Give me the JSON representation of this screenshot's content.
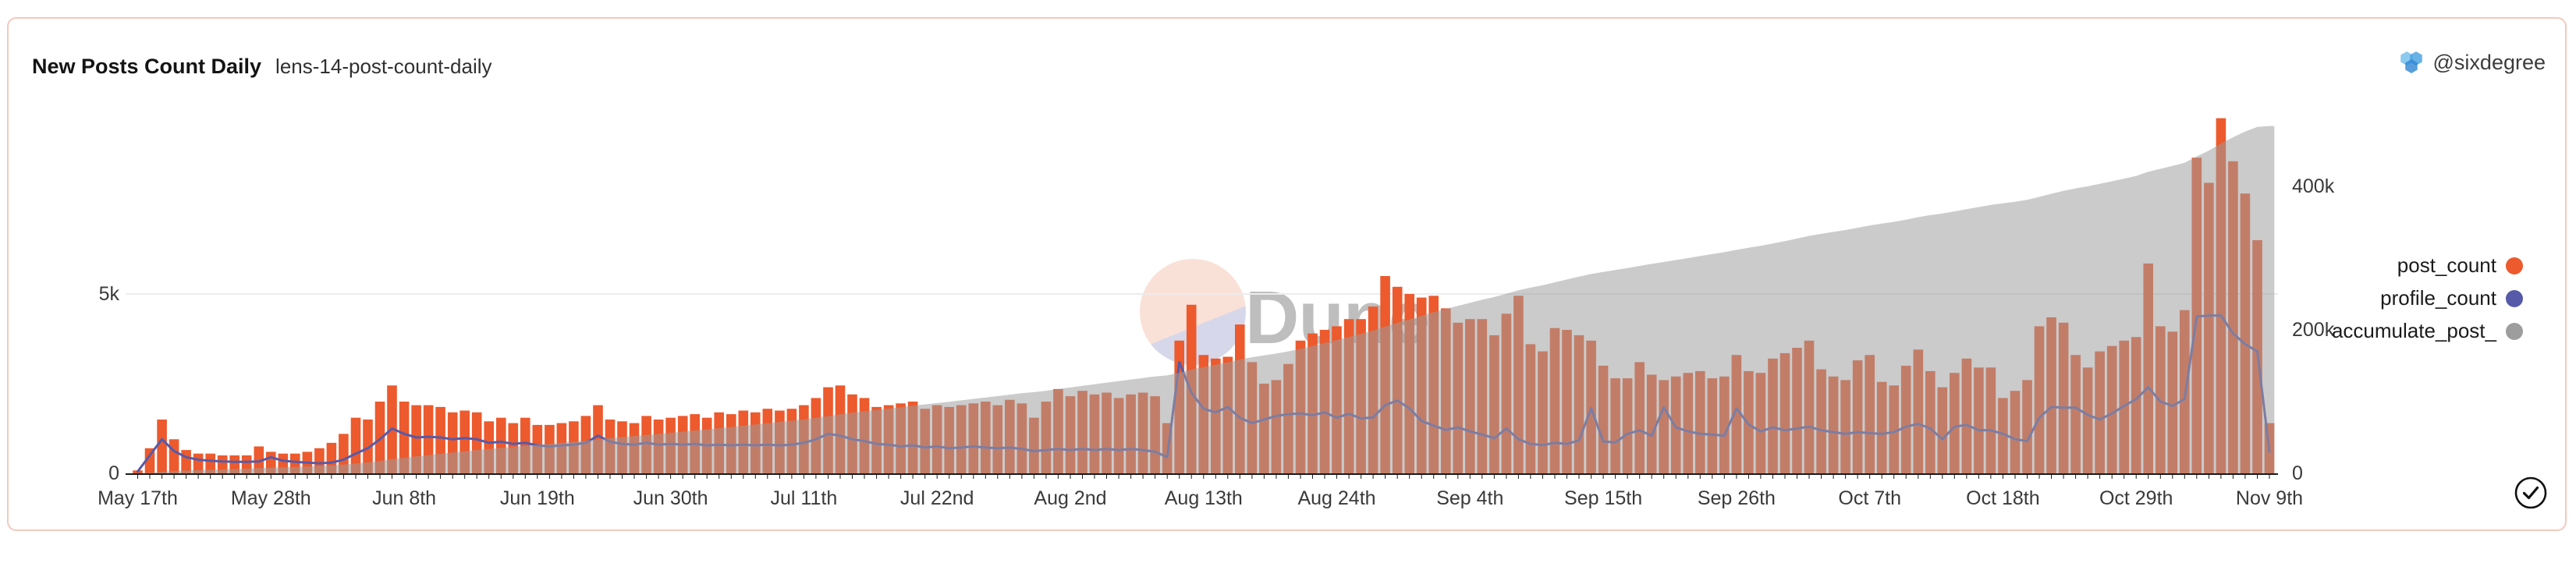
{
  "card": {
    "title": "New Posts Count Daily",
    "subtitle": "lens-14-post-count-daily",
    "owner": "@sixdegree",
    "owner_icon": "hexagon-cluster-icon",
    "status_icon": "check-circle-icon"
  },
  "watermark": {
    "text": "Dune",
    "icon": "dune-sun-circle-icon"
  },
  "legend": {
    "position": "right",
    "items": [
      {
        "label": "post_count",
        "color": "#EC5A2D",
        "marker": "circle"
      },
      {
        "label": "profile_count",
        "color": "#575AA8",
        "marker": "circle"
      },
      {
        "label": "accumulate_post_",
        "color": "#9D9D9D",
        "marker": "circle"
      }
    ]
  },
  "chart_data": {
    "type": "combo",
    "title": "New Posts Count Daily",
    "x_unit": "day",
    "n_days": 177,
    "x_start_label": "May 17th",
    "x_end_label": "Nov 9th",
    "x_tick_labels": [
      "May 17th",
      "May 28th",
      "Jun 8th",
      "Jun 19th",
      "Jun 30th",
      "Jul 11th",
      "Jul 22nd",
      "Aug 2nd",
      "Aug 13th",
      "Aug 24th",
      "Sep 4th",
      "Sep 15th",
      "Sep 26th",
      "Oct 7th",
      "Oct 18th",
      "Oct 29th",
      "Nov 9th"
    ],
    "x_tick_day_indices": [
      0,
      11,
      22,
      33,
      44,
      55,
      66,
      77,
      88,
      99,
      110,
      121,
      132,
      143,
      154,
      165,
      176
    ],
    "y_left": {
      "tick_labels": [
        "0",
        "5k"
      ],
      "tick_values": [
        0,
        5000
      ],
      "max": 10000,
      "gridline_at": 5000
    },
    "y_right": {
      "tick_labels": [
        "0",
        "200k",
        "400k"
      ],
      "tick_values": [
        0,
        200000,
        400000
      ],
      "max": 500000
    },
    "grid": "single-horizontal-line",
    "legend_position": "right",
    "series": [
      {
        "name": "post_count",
        "type": "bar",
        "y_axis": "left",
        "color": "#EC5A2D",
        "values": [
          80,
          700,
          1500,
          950,
          650,
          550,
          550,
          500,
          500,
          500,
          750,
          600,
          550,
          550,
          600,
          700,
          850,
          1100,
          1550,
          1500,
          2000,
          2450,
          2000,
          1900,
          1900,
          1850,
          1700,
          1750,
          1700,
          1450,
          1550,
          1400,
          1550,
          1350,
          1350,
          1400,
          1450,
          1600,
          1900,
          1500,
          1450,
          1400,
          1600,
          1500,
          1550,
          1600,
          1650,
          1550,
          1700,
          1650,
          1750,
          1700,
          1800,
          1750,
          1800,
          1900,
          2100,
          2400,
          2450,
          2200,
          2100,
          1850,
          1900,
          1950,
          2000,
          1800,
          1900,
          1850,
          1900,
          1950,
          2000,
          1900,
          2050,
          1950,
          1550,
          2000,
          2350,
          2150,
          2300,
          2200,
          2250,
          2100,
          2200,
          2250,
          2150,
          1400,
          3700,
          4700,
          3300,
          3200,
          3250,
          4150,
          3100,
          2500,
          2600,
          3050,
          3700,
          3900,
          4000,
          4100,
          4300,
          4300,
          4650,
          5500,
          5200,
          5000,
          4900,
          4950,
          4600,
          4200,
          4300,
          4300,
          3850,
          4450,
          4950,
          3600,
          3400,
          4050,
          4000,
          3850,
          3700,
          3000,
          2650,
          2650,
          3100,
          2750,
          2600,
          2700,
          2800,
          2850,
          2650,
          2700,
          3300,
          2850,
          2800,
          3200,
          3350,
          3500,
          3700,
          2900,
          2700,
          2600,
          3150,
          3300,
          2550,
          2450,
          3000,
          3450,
          2850,
          2400,
          2800,
          3200,
          2950,
          2950,
          2100,
          2300,
          2600,
          4100,
          4350,
          4200,
          3300,
          2950,
          3400,
          3550,
          3700,
          3800,
          5850,
          4100,
          3950,
          4550,
          8800,
          8100,
          9900,
          8700,
          7800,
          6500,
          1400
        ]
      },
      {
        "name": "profile_count",
        "type": "line",
        "y_axis": "left",
        "color": "#575AA8",
        "values": [
          50,
          500,
          950,
          620,
          450,
          380,
          350,
          330,
          320,
          320,
          330,
          450,
          350,
          320,
          300,
          280,
          300,
          380,
          550,
          700,
          950,
          1250,
          1100,
          1000,
          1020,
          1000,
          950,
          980,
          950,
          850,
          880,
          820,
          850,
          780,
          750,
          780,
          800,
          850,
          1050,
          880,
          820,
          800,
          850,
          800,
          820,
          800,
          820,
          780,
          800,
          780,
          800,
          780,
          800,
          780,
          800,
          850,
          950,
          1100,
          1050,
          950,
          900,
          820,
          800,
          750,
          780,
          720,
          750,
          700,
          720,
          750,
          720,
          700,
          720,
          680,
          620,
          650,
          680,
          650,
          680,
          650,
          680,
          650,
          680,
          650,
          600,
          450,
          3100,
          2250,
          1800,
          1700,
          1850,
          1550,
          1400,
          1500,
          1600,
          1650,
          1670,
          1620,
          1700,
          1550,
          1660,
          1530,
          1560,
          1900,
          2030,
          1810,
          1460,
          1330,
          1210,
          1280,
          1170,
          1080,
          980,
          1250,
          950,
          820,
          790,
          850,
          820,
          920,
          1810,
          890,
          860,
          1100,
          1200,
          1050,
          1840,
          1280,
          1170,
          1100,
          1080,
          1050,
          1810,
          1360,
          1170,
          1280,
          1200,
          1250,
          1300,
          1200,
          1150,
          1100,
          1150,
          1120,
          1100,
          1150,
          1300,
          1380,
          1250,
          950,
          1300,
          1350,
          1200,
          1200,
          1100,
          950,
          900,
          1550,
          1850,
          1830,
          1830,
          1630,
          1500,
          1670,
          1880,
          2070,
          2400,
          2000,
          1880,
          2070,
          4370,
          4400,
          4400,
          3900,
          3600,
          3400,
          600
        ]
      },
      {
        "name": "accumulate_post_",
        "type": "area",
        "y_axis": "right",
        "color": "#CCCCCC",
        "values": [
          80,
          780,
          2280,
          3230,
          3880,
          4430,
          4980,
          5480,
          5980,
          6480,
          7230,
          7830,
          8380,
          8930,
          9530,
          10230,
          11080,
          12180,
          13730,
          15230,
          17230,
          19680,
          21680,
          23580,
          25480,
          27330,
          29030,
          30780,
          32480,
          33930,
          35480,
          36880,
          38430,
          39780,
          41130,
          42530,
          43980,
          45580,
          47480,
          48980,
          50430,
          51830,
          53430,
          54930,
          56480,
          58080,
          59730,
          61280,
          62980,
          64630,
          66380,
          68080,
          69880,
          71630,
          73430,
          75330,
          77430,
          79830,
          82280,
          84480,
          86580,
          88430,
          90330,
          92280,
          94280,
          96080,
          97980,
          99830,
          101730,
          103680,
          105680,
          107580,
          109630,
          111580,
          113130,
          115130,
          117480,
          119630,
          121930,
          124130,
          126380,
          128480,
          130680,
          132930,
          135080,
          136480,
          140180,
          144880,
          148180,
          151380,
          154630,
          158780,
          161880,
          164380,
          166980,
          170030,
          173730,
          177630,
          181630,
          185730,
          190030,
          194330,
          198980,
          204480,
          209680,
          214680,
          219580,
          224530,
          229130,
          233330,
          237630,
          241930,
          245780,
          250230,
          255180,
          258780,
          262180,
          266230,
          270230,
          274080,
          277780,
          280780,
          283430,
          286080,
          289180,
          291930,
          294530,
          297230,
          300030,
          302880,
          305530,
          308230,
          311530,
          314380,
          317180,
          320380,
          323730,
          327230,
          330930,
          333830,
          336530,
          339130,
          342280,
          345580,
          348130,
          350580,
          353580,
          357030,
          359880,
          362280,
          365080,
          368280,
          371230,
          374180,
          376280,
          378580,
          381180,
          385280,
          389630,
          393830,
          397130,
          400080,
          403480,
          407030,
          410730,
          414530,
          420380,
          424480,
          428430,
          432980,
          441780,
          449880,
          459780,
          468480,
          476280,
          482780,
          484180
        ]
      }
    ]
  }
}
